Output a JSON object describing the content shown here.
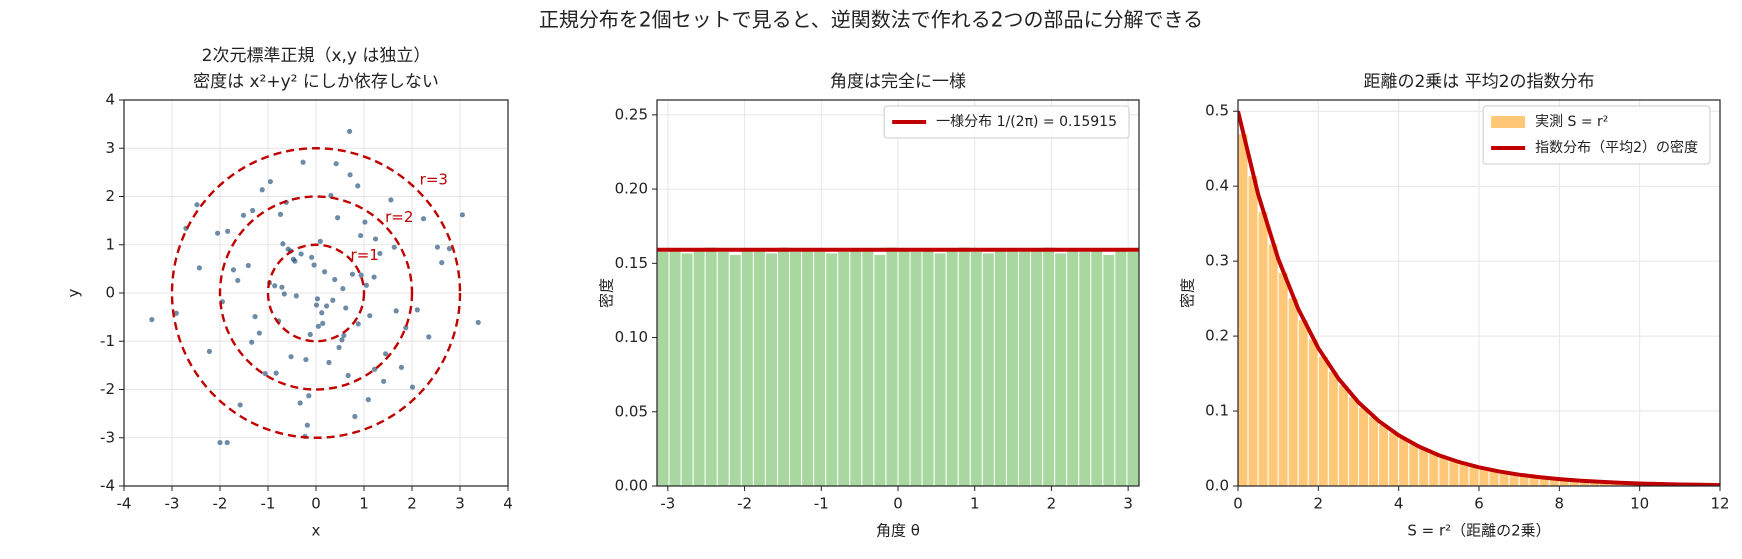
{
  "title": "正規分布を2個セットで見ると、逆関数法で作れる2つの部品に分解できる",
  "chart_data": [
    {
      "type": "scatter",
      "title": [
        "2次元標準正規（x,y は独立）",
        "密度は x²+y² にしか依存しない"
      ],
      "x_label": "x",
      "y_label": "y",
      "xlim": [
        -4,
        4
      ],
      "ylim": [
        -4,
        4
      ],
      "xticks": [
        -4,
        -3,
        -2,
        -1,
        0,
        1,
        2,
        3,
        4
      ],
      "yticks": [
        -4,
        -3,
        -2,
        -1,
        0,
        1,
        2,
        3,
        4
      ],
      "grid": true,
      "color": "#1f4e79",
      "x": [
        0.12,
        -0.53,
        1.21,
        -1.34,
        0.45,
        0.88,
        -0.21,
        -0.97,
        1.63,
        -1.72,
        0.03,
        0.67,
        -0.44,
        2.11,
        -2.05,
        0.31,
        -0.78,
        1.02,
        -0.15,
        0.56,
        -1.18,
        1.45,
        -0.62,
        0.94,
        -2.43,
        2.35,
        -0.09,
        0.22,
        -1.51,
        1.78,
        0.71,
        -0.33,
        -0.86,
        1.24,
        0.05,
        -1.95,
        2.62,
        -2.71,
        0.48,
        -0.27,
        1.12,
        -1.06,
        0.39,
        -0.58,
        0.81,
        -1.41,
        1.56,
        -0.12,
        0.18,
        -2.22,
        2.01,
        -0.74,
        0.62,
        -0.41,
        1.33,
        -1.27,
        0.27,
        -0.95,
        0.09,
        1.87,
        -1.63,
        0.54,
        -0.18,
        2.78,
        -2.91,
        0.93,
        -0.69,
        1.41,
        -0.04,
        0.35,
        -1.12,
        0.76,
        -0.52,
        1.09,
        -0.31,
        2.24,
        -1.84,
        0.14,
        -0.83,
        1.67,
        -2.48,
        0.42,
        -0.23,
        1.05,
        -0.66,
        3.05,
        -3.42,
        0.7,
        3.38,
        -2.0,
        -1.85,
        -0.47,
        0.58,
        -1.32,
        1.22,
        0.01,
        -0.71,
        0.87,
        -1.58,
        2.53
      ],
      "y": [
        -0.41,
        0.87,
        0.33,
        -1.02,
        1.56,
        -0.64,
        -1.38,
        0.21,
        0.95,
        0.48,
        -0.12,
        -1.71,
        0.66,
        -0.35,
        1.24,
        2.02,
        -0.58,
        1.47,
        -2.13,
        0.09,
        -0.83,
        -1.26,
        1.88,
        0.37,
        0.52,
        -0.91,
        0.74,
        -0.27,
        1.61,
        -1.54,
        2.45,
        -2.28,
        0.15,
        1.12,
        -0.69,
        -0.18,
        0.63,
        1.34,
        -1.13,
        2.71,
        -0.47,
        -1.67,
        0.28,
        0.91,
        -2.56,
        0.57,
        1.93,
        -0.86,
        0.44,
        -1.21,
        -1.95,
        1.63,
        -0.31,
        -0.06,
        0.82,
        -0.49,
        -1.44,
        2.31,
        1.07,
        -0.72,
        0.26,
        -0.97,
        -2.74,
        0.92,
        -0.42,
        1.19,
        1.02,
        -1.83,
        0.58,
        -0.15,
        2.14,
        0.39,
        -1.32,
        -2.21,
        0.81,
        1.54,
        1.28,
        -0.63,
        -1.66,
        -0.37,
        1.83,
        2.68,
        -2.97,
        0.16,
        -0.02,
        1.62,
        -0.55,
        3.35,
        -0.61,
        -3.1,
        -3.1,
        0.7,
        -0.88,
        1.71,
        -1.58,
        -0.25,
        0.12,
        2.22,
        -2.32,
        0.95
      ],
      "circles": [
        {
          "r": 1,
          "label": "r=1"
        },
        {
          "r": 2,
          "label": "r=2"
        },
        {
          "r": 3,
          "label": "r=3"
        }
      ],
      "circle_color": "#c00000"
    },
    {
      "type": "histogram",
      "title": "角度は完全に一様",
      "x_label": "角度 θ",
      "y_label": "密度",
      "xlim": [
        -3.1416,
        3.1416
      ],
      "ylim": [
        0,
        0.26
      ],
      "xticks": [
        -3,
        -2,
        -1,
        0,
        1,
        2,
        3
      ],
      "yticks": [
        {
          "value": 0,
          "label": "0.00"
        },
        {
          "value": 0.05,
          "label": "0.05"
        },
        {
          "value": 0.1,
          "label": "0.10"
        },
        {
          "value": 0.15,
          "label": "0.15"
        },
        {
          "value": 0.2,
          "label": "0.20"
        },
        {
          "value": 0.25,
          "label": "0.25"
        }
      ],
      "grid": true,
      "legend": "upper right",
      "color": "#a8d8a0",
      "bins": [
        -3.1416,
        -2.9845,
        -2.8274,
        -2.6704,
        -2.5133,
        -2.3562,
        -2.1991,
        -2.042,
        -1.885,
        -1.7279,
        -1.5708,
        -1.4137,
        -1.2566,
        -1.0996,
        -0.9425,
        -0.7854,
        -0.6283,
        -0.4712,
        -0.3142,
        -0.1571,
        0,
        0.1571,
        0.3142,
        0.4712,
        0.6283,
        0.7854,
        0.9425,
        1.0996,
        1.2566,
        1.4137,
        1.5708,
        1.7279,
        1.885,
        2.042,
        2.1991,
        2.3562,
        2.5133,
        2.6704,
        2.8274,
        2.9845,
        3.1416
      ],
      "values": [
        0.158,
        0.16,
        0.157,
        0.159,
        0.161,
        0.158,
        0.156,
        0.16,
        0.159,
        0.157,
        0.161,
        0.158,
        0.159,
        0.16,
        0.157,
        0.158,
        0.16,
        0.159,
        0.156,
        0.161,
        0.159,
        0.158,
        0.16,
        0.157,
        0.159,
        0.161,
        0.158,
        0.157,
        0.16,
        0.159,
        0.158,
        0.16,
        0.161,
        0.157,
        0.159,
        0.158,
        0.16,
        0.156,
        0.159,
        0.158
      ],
      "hline": {
        "name": "一様分布 1/(2π) = 0.15915",
        "value": 0.15915,
        "color": "#c00000"
      }
    },
    {
      "type": "histogram",
      "title": "距離の2乗は 平均2の指数分布",
      "x_label": "S = r²（距離の2乗）",
      "y_label": "密度",
      "xlim": [
        0,
        12
      ],
      "ylim": [
        0,
        0.515
      ],
      "xticks": [
        0,
        2,
        4,
        6,
        8,
        10,
        12
      ],
      "yticks": [
        {
          "value": 0,
          "label": "0.0"
        },
        {
          "value": 0.1,
          "label": "0.1"
        },
        {
          "value": 0.2,
          "label": "0.2"
        },
        {
          "value": 0.3,
          "label": "0.3"
        },
        {
          "value": 0.4,
          "label": "0.4"
        },
        {
          "value": 0.5,
          "label": "0.5"
        }
      ],
      "grid": true,
      "legend": "upper right",
      "name": "実測 S = r²",
      "color": "#ffc878",
      "bins": [
        0,
        0.25,
        0.5,
        0.75,
        1,
        1.25,
        1.5,
        1.75,
        2,
        2.25,
        2.5,
        2.75,
        3,
        3.25,
        3.5,
        3.75,
        4,
        4.25,
        4.5,
        4.75,
        5,
        5.25,
        5.5,
        5.75,
        6,
        6.25,
        6.5,
        6.75,
        7,
        7.25,
        7.5,
        7.75,
        8,
        8.25,
        8.5,
        8.75,
        9,
        9.25,
        9.5,
        9.75,
        10,
        10.25,
        10.5,
        10.75,
        11,
        11.25,
        11.5,
        11.75,
        12
      ],
      "values": [
        0.47,
        0.414,
        0.366,
        0.323,
        0.285,
        0.251,
        0.222,
        0.196,
        0.173,
        0.153,
        0.135,
        0.119,
        0.105,
        0.093,
        0.082,
        0.072,
        0.064,
        0.056,
        0.05,
        0.044,
        0.039,
        0.034,
        0.03,
        0.027,
        0.023,
        0.021,
        0.018,
        0.016,
        0.014,
        0.013,
        0.011,
        0.01,
        0.009,
        0.008,
        0.007,
        0.006,
        0.005,
        0.005,
        0.004,
        0.004,
        0.003,
        0.003,
        0.003,
        0.002,
        0.002,
        0.002,
        0.002,
        0.001
      ],
      "curve": {
        "name": "指数分布（平均2）の密度",
        "color": "#c00000",
        "x": [
          0,
          0.5,
          1,
          1.5,
          2,
          2.5,
          3,
          3.5,
          4,
          4.5,
          5,
          5.5,
          6,
          6.5,
          7,
          7.5,
          8,
          8.5,
          9,
          9.5,
          10,
          10.5,
          11,
          11.5,
          12
        ],
        "y": [
          0.5,
          0.3894,
          0.3033,
          0.2362,
          0.1839,
          0.1433,
          0.1116,
          0.0869,
          0.0677,
          0.0527,
          0.041,
          0.032,
          0.0249,
          0.0194,
          0.0151,
          0.0118,
          0.0092,
          0.0071,
          0.0056,
          0.0043,
          0.0034,
          0.0026,
          0.002,
          0.0016,
          0.0012
        ]
      }
    }
  ]
}
